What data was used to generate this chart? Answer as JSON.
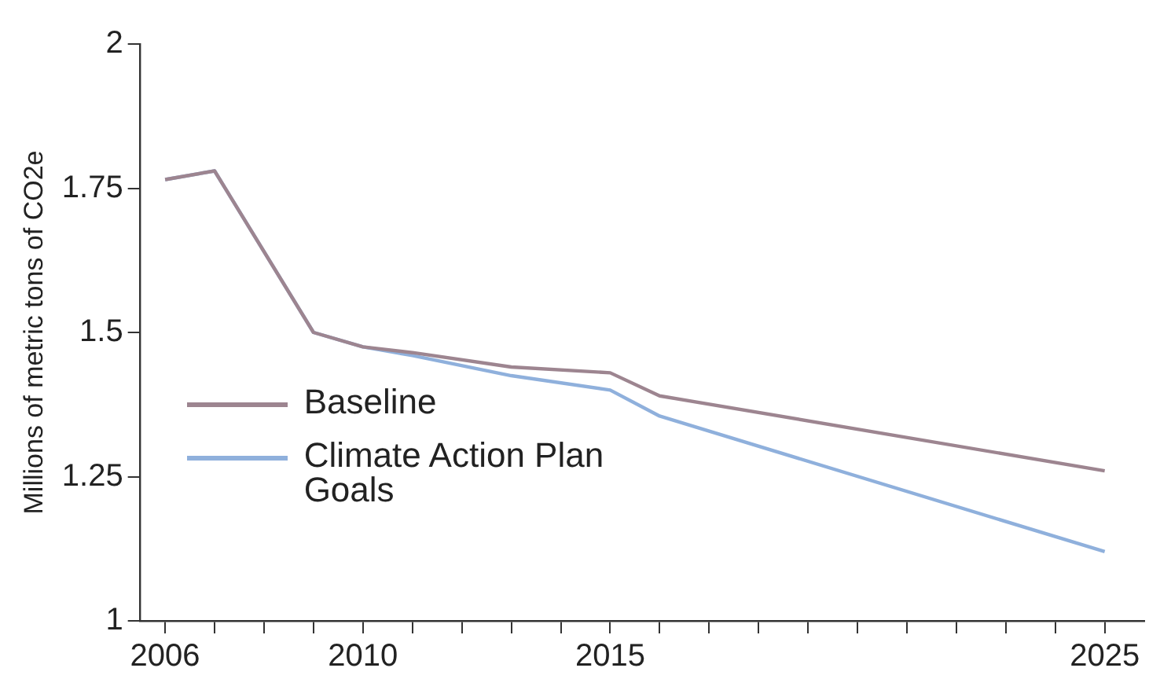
{
  "chart_data": {
    "type": "line",
    "ylabel": "Millions of metric tons of CO2e",
    "xlim": [
      2005.5,
      2025.8
    ],
    "xticks": [
      2006,
      {
        "value": 2007,
        "label": null
      },
      {
        "value": 2008,
        "label": null
      },
      {
        "value": 2009,
        "label": null
      },
      2010,
      {
        "value": 2011,
        "label": null
      },
      {
        "value": 2012,
        "label": null
      },
      {
        "value": 2013,
        "label": null
      },
      {
        "value": 2014,
        "label": null
      },
      2015,
      {
        "value": 2016,
        "label": null
      },
      {
        "value": 2017,
        "label": null
      },
      {
        "value": 2018,
        "label": null
      },
      {
        "value": 2019,
        "label": null
      },
      {
        "value": 2020,
        "label": null
      },
      {
        "value": 2021,
        "label": null
      },
      {
        "value": 2022,
        "label": null
      },
      {
        "value": 2023,
        "label": null
      },
      {
        "value": 2024,
        "label": null
      },
      2025
    ],
    "ylim": [
      1,
      2
    ],
    "yticks": [
      1,
      1.25,
      1.5,
      1.75,
      2
    ],
    "grid": false,
    "legend": "bottom left",
    "marker": "none",
    "line_style": "solid",
    "series": [
      {
        "name": "Baseline",
        "color": "#9d8590",
        "x": [
          2006,
          2007,
          2009,
          2010,
          2011,
          2013,
          2015,
          2016,
          2025
        ],
        "values": [
          1.765,
          1.78,
          1.5,
          1.475,
          1.465,
          1.44,
          1.43,
          1.39,
          1.26
        ]
      },
      {
        "name": "Climate Action Plan Goals",
        "color": "#8fb0dc",
        "x": [
          2006,
          2007,
          2009,
          2010,
          2011,
          2013,
          2015,
          2016,
          2025
        ],
        "values": [
          1.765,
          1.78,
          1.5,
          1.475,
          1.46,
          1.425,
          1.4,
          1.355,
          1.12
        ]
      }
    ]
  }
}
